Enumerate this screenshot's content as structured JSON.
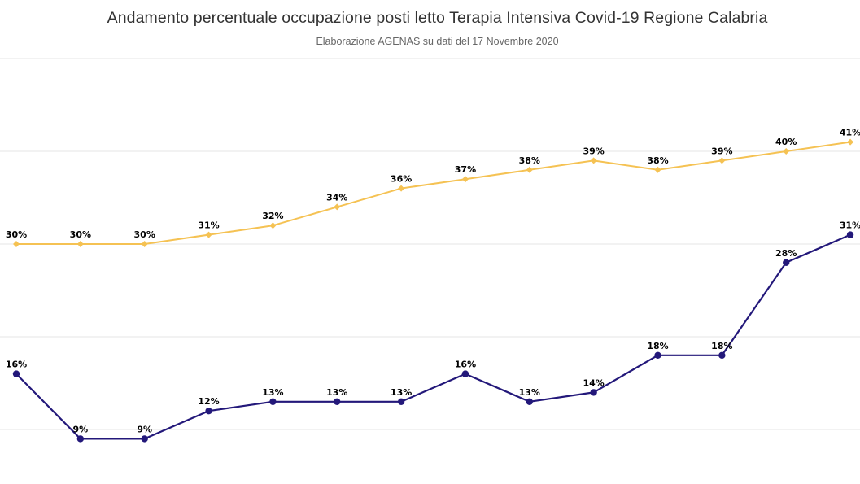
{
  "chart_data": {
    "type": "line",
    "title": "Andamento percentuale occupazione posti letto Terapia Intensiva Covid-19 Regione Calabria",
    "subtitle": "Elaborazione AGENAS su dati del 17 Novembre 2020",
    "xlabel": "",
    "ylabel": "",
    "ylim": [
      5,
      55
    ],
    "grid": true,
    "legend": "none",
    "value_suffix": "%",
    "series": [
      {
        "color": "#f5c253",
        "values": [
          30,
          30,
          30,
          31,
          32,
          34,
          36,
          37,
          38,
          39,
          38,
          39,
          40,
          41
        ]
      },
      {
        "color": "#23187a",
        "values": [
          16,
          9,
          9,
          12,
          13,
          13,
          13,
          16,
          13,
          14,
          18,
          18,
          28,
          31
        ]
      }
    ]
  }
}
